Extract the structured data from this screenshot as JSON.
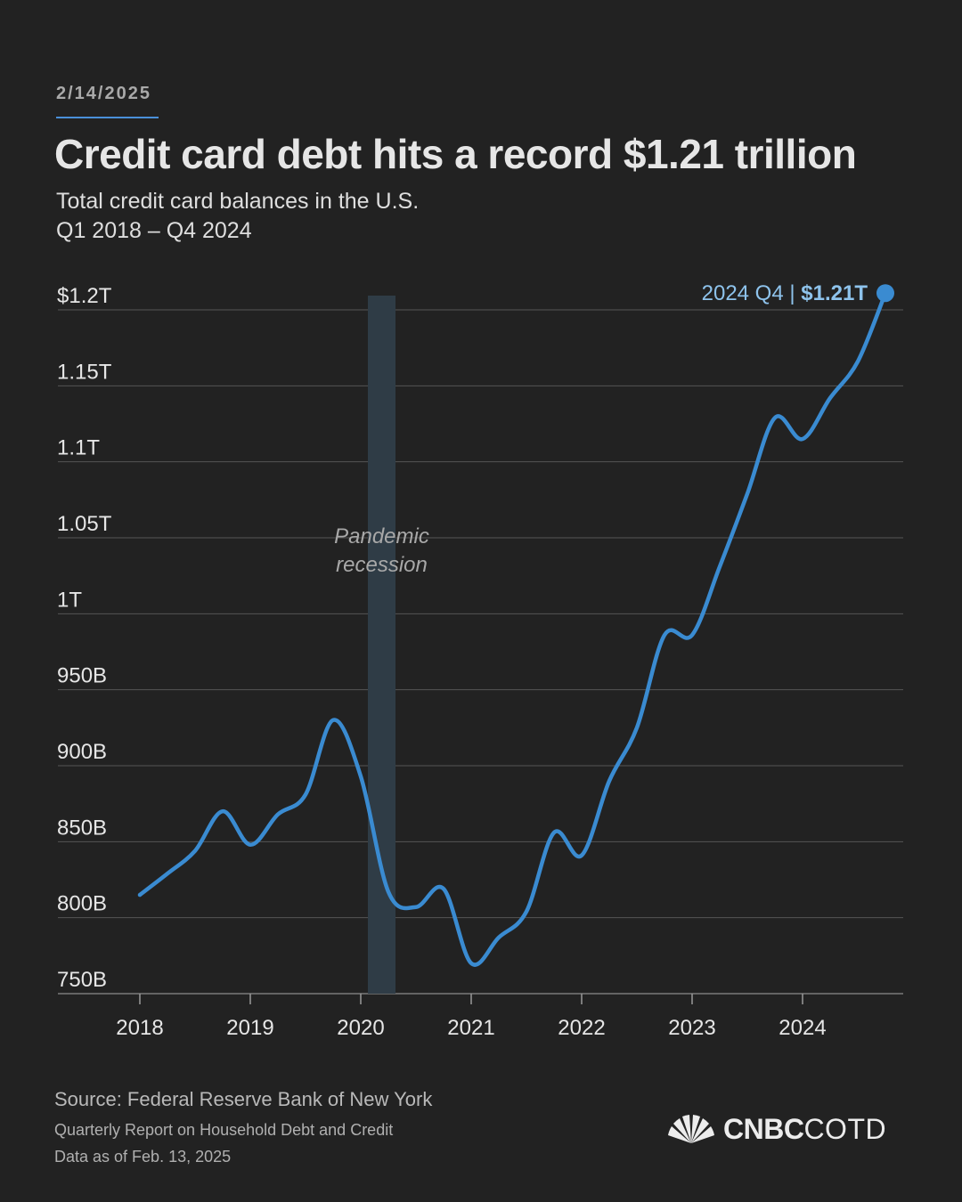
{
  "header": {
    "date": "2/14/2025",
    "title": "Credit card debt hits a record $1.21 trillion",
    "subtitle_line1": "Total credit card balances in the U.S.",
    "subtitle_line2": "Q1 2018 – Q4 2024"
  },
  "chart_data": {
    "type": "line",
    "title": "Credit card debt hits a record $1.21 trillion",
    "unit": "billions of dollars",
    "x": [
      "2018 Q1",
      "2018 Q2",
      "2018 Q3",
      "2018 Q4",
      "2019 Q1",
      "2019 Q2",
      "2019 Q3",
      "2019 Q4",
      "2020 Q1",
      "2020 Q2",
      "2020 Q3",
      "2020 Q4",
      "2021 Q1",
      "2021 Q2",
      "2021 Q3",
      "2021 Q4",
      "2022 Q1",
      "2022 Q2",
      "2022 Q3",
      "2022 Q4",
      "2023 Q1",
      "2023 Q2",
      "2023 Q3",
      "2023 Q4",
      "2024 Q1",
      "2024 Q2",
      "2024 Q3",
      "2024 Q4"
    ],
    "series": [
      {
        "values": [
          815,
          829,
          844,
          870,
          848,
          868,
          881,
          930,
          893,
          817,
          807,
          819,
          770,
          787,
          804,
          856,
          841,
          890,
          925,
          986,
          986,
          1031,
          1079,
          1129,
          1115,
          1142,
          1166,
          1211
        ]
      }
    ],
    "xticks": [
      "2018",
      "2019",
      "2020",
      "2021",
      "2022",
      "2023",
      "2024"
    ],
    "yticks": [
      {
        "value": 750,
        "label": "750B"
      },
      {
        "value": 800,
        "label": "800B"
      },
      {
        "value": 850,
        "label": "850B"
      },
      {
        "value": 900,
        "label": "900B"
      },
      {
        "value": 950,
        "label": "950B"
      },
      {
        "value": 1000,
        "label": "1T"
      },
      {
        "value": 1050,
        "label": "1.05T"
      },
      {
        "value": 1100,
        "label": "1.1T"
      },
      {
        "value": 1150,
        "label": "1.15T"
      },
      {
        "value": 1200,
        "label": "$1.2T"
      }
    ],
    "ylim": [
      750,
      1200
    ],
    "grid": true,
    "recession": {
      "label_line1": "Pandemic",
      "label_line2": "recession",
      "start": "2020 Q1",
      "end": "2020 Q2"
    },
    "annotation": {
      "label": "2024 Q4 | ",
      "value": "$1.21T",
      "point": "2024 Q4"
    },
    "colors": {
      "line": "#3a8bd1",
      "grid": "#555555",
      "recession": "#2f3c46",
      "annotation": "#8ec3ec"
    }
  },
  "footer": {
    "source": "Source: Federal Reserve Bank of New York",
    "report": "Quarterly Report on Household Debt and Credit",
    "data_as_of": "Data as of Feb. 13, 2025",
    "logo_bold": "CNBC",
    "logo_light": "COTD",
    "logo_icon": "peacock-icon"
  }
}
